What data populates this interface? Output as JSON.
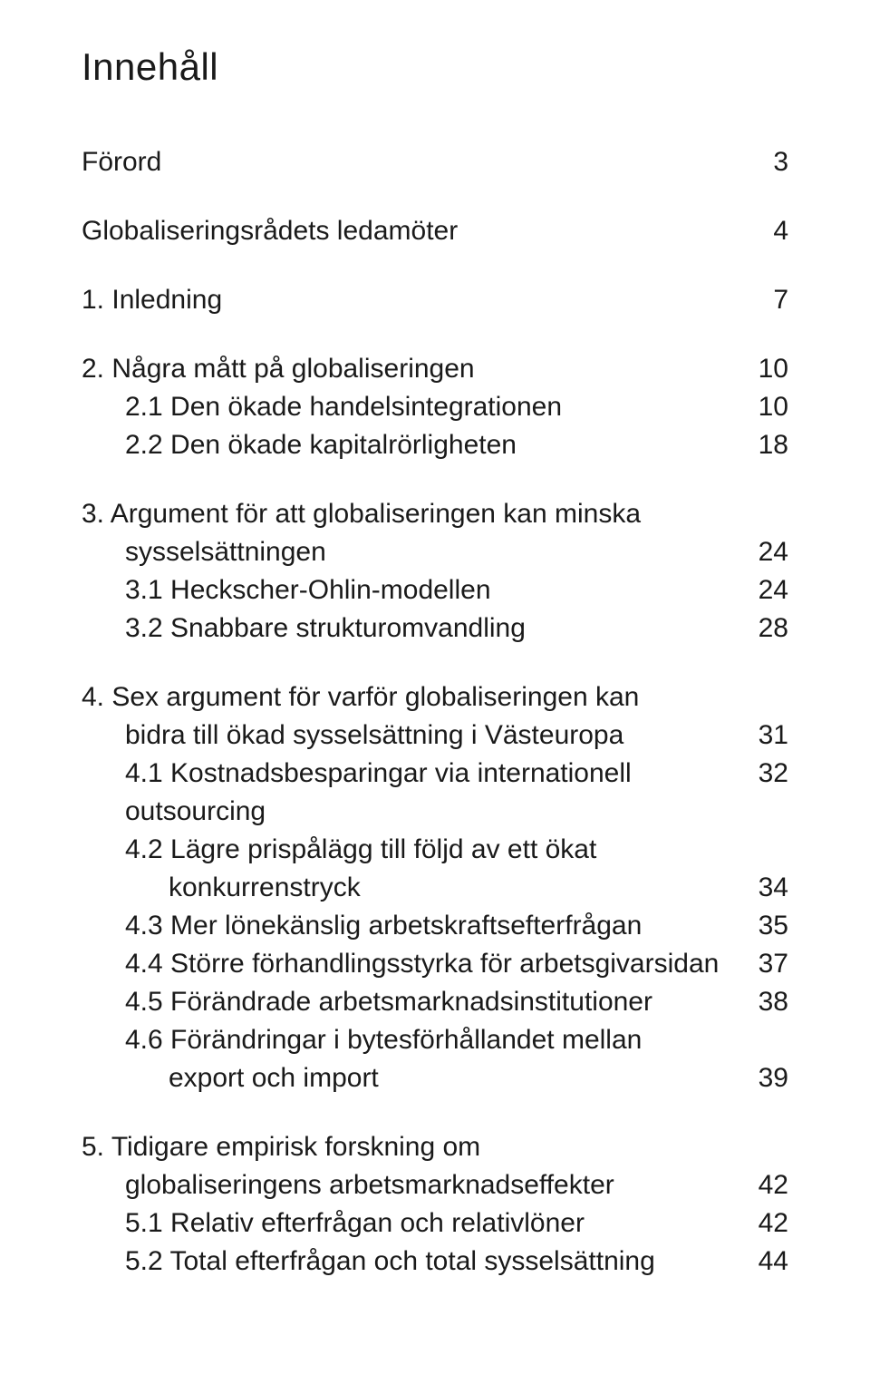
{
  "heading": "Innehåll",
  "entries": [
    {
      "kind": "row",
      "indent": 0,
      "label": "Förord",
      "page": "3"
    },
    {
      "kind": "gap"
    },
    {
      "kind": "row",
      "indent": 0,
      "label": "Globaliseringsrådets ledamöter",
      "page": "4"
    },
    {
      "kind": "gap"
    },
    {
      "kind": "row",
      "indent": 0,
      "label": "1. Inledning",
      "page": "7"
    },
    {
      "kind": "gap"
    },
    {
      "kind": "row",
      "indent": 0,
      "label": "2. Några mått på globaliseringen",
      "page": "10"
    },
    {
      "kind": "row",
      "indent": 1,
      "label": "2.1 Den ökade handelsintegrationen",
      "page": "10"
    },
    {
      "kind": "row",
      "indent": 1,
      "label": "2.2 Den ökade kapitalrörligheten",
      "page": "18"
    },
    {
      "kind": "gap"
    },
    {
      "kind": "row",
      "indent": 0,
      "label": "3. Argument för att globaliseringen kan minska",
      "page": ""
    },
    {
      "kind": "row",
      "indent": 1,
      "label": "sysselsättningen",
      "page": "24"
    },
    {
      "kind": "row",
      "indent": 1,
      "label": "3.1 Heckscher-Ohlin-modellen",
      "page": "24"
    },
    {
      "kind": "row",
      "indent": 1,
      "label": "3.2 Snabbare strukturomvandling",
      "page": "28"
    },
    {
      "kind": "gap"
    },
    {
      "kind": "row",
      "indent": 0,
      "label": "4. Sex argument för varför globaliseringen kan",
      "page": ""
    },
    {
      "kind": "row",
      "indent": 1,
      "label": "bidra till ökad sysselsättning i Västeuropa",
      "page": "31"
    },
    {
      "kind": "row",
      "indent": 1,
      "label": "4.1 Kostnadsbesparingar via internationell outsourcing",
      "page": "32"
    },
    {
      "kind": "row",
      "indent": 1,
      "label": "4.2 Lägre prispålägg till följd av ett ökat",
      "page": ""
    },
    {
      "kind": "row",
      "indent": 2,
      "label": "konkurrenstryck",
      "page": "34"
    },
    {
      "kind": "row",
      "indent": 1,
      "label": "4.3 Mer lönekänslig arbetskraftsefterfrågan",
      "page": "35"
    },
    {
      "kind": "row",
      "indent": 1,
      "label": "4.4 Större förhandlingsstyrka för arbetsgivarsidan",
      "page": "37"
    },
    {
      "kind": "row",
      "indent": 1,
      "label": "4.5 Förändrade arbetsmarknadsinstitutioner",
      "page": "38"
    },
    {
      "kind": "row",
      "indent": 1,
      "label": "4.6 Förändringar i bytesförhållandet mellan",
      "page": ""
    },
    {
      "kind": "row",
      "indent": 2,
      "label": "export och import",
      "page": "39"
    },
    {
      "kind": "gap"
    },
    {
      "kind": "row",
      "indent": 0,
      "label": "5. Tidigare empirisk forskning om",
      "page": ""
    },
    {
      "kind": "row",
      "indent": 1,
      "label": "globaliseringens arbetsmarknadseffekter",
      "page": "42"
    },
    {
      "kind": "row",
      "indent": 1,
      "label": "5.1 Relativ efterfrågan och relativlöner",
      "page": "42"
    },
    {
      "kind": "row",
      "indent": 1,
      "label": "5.2 Total efterfrågan och total sysselsättning",
      "page": "44"
    }
  ]
}
